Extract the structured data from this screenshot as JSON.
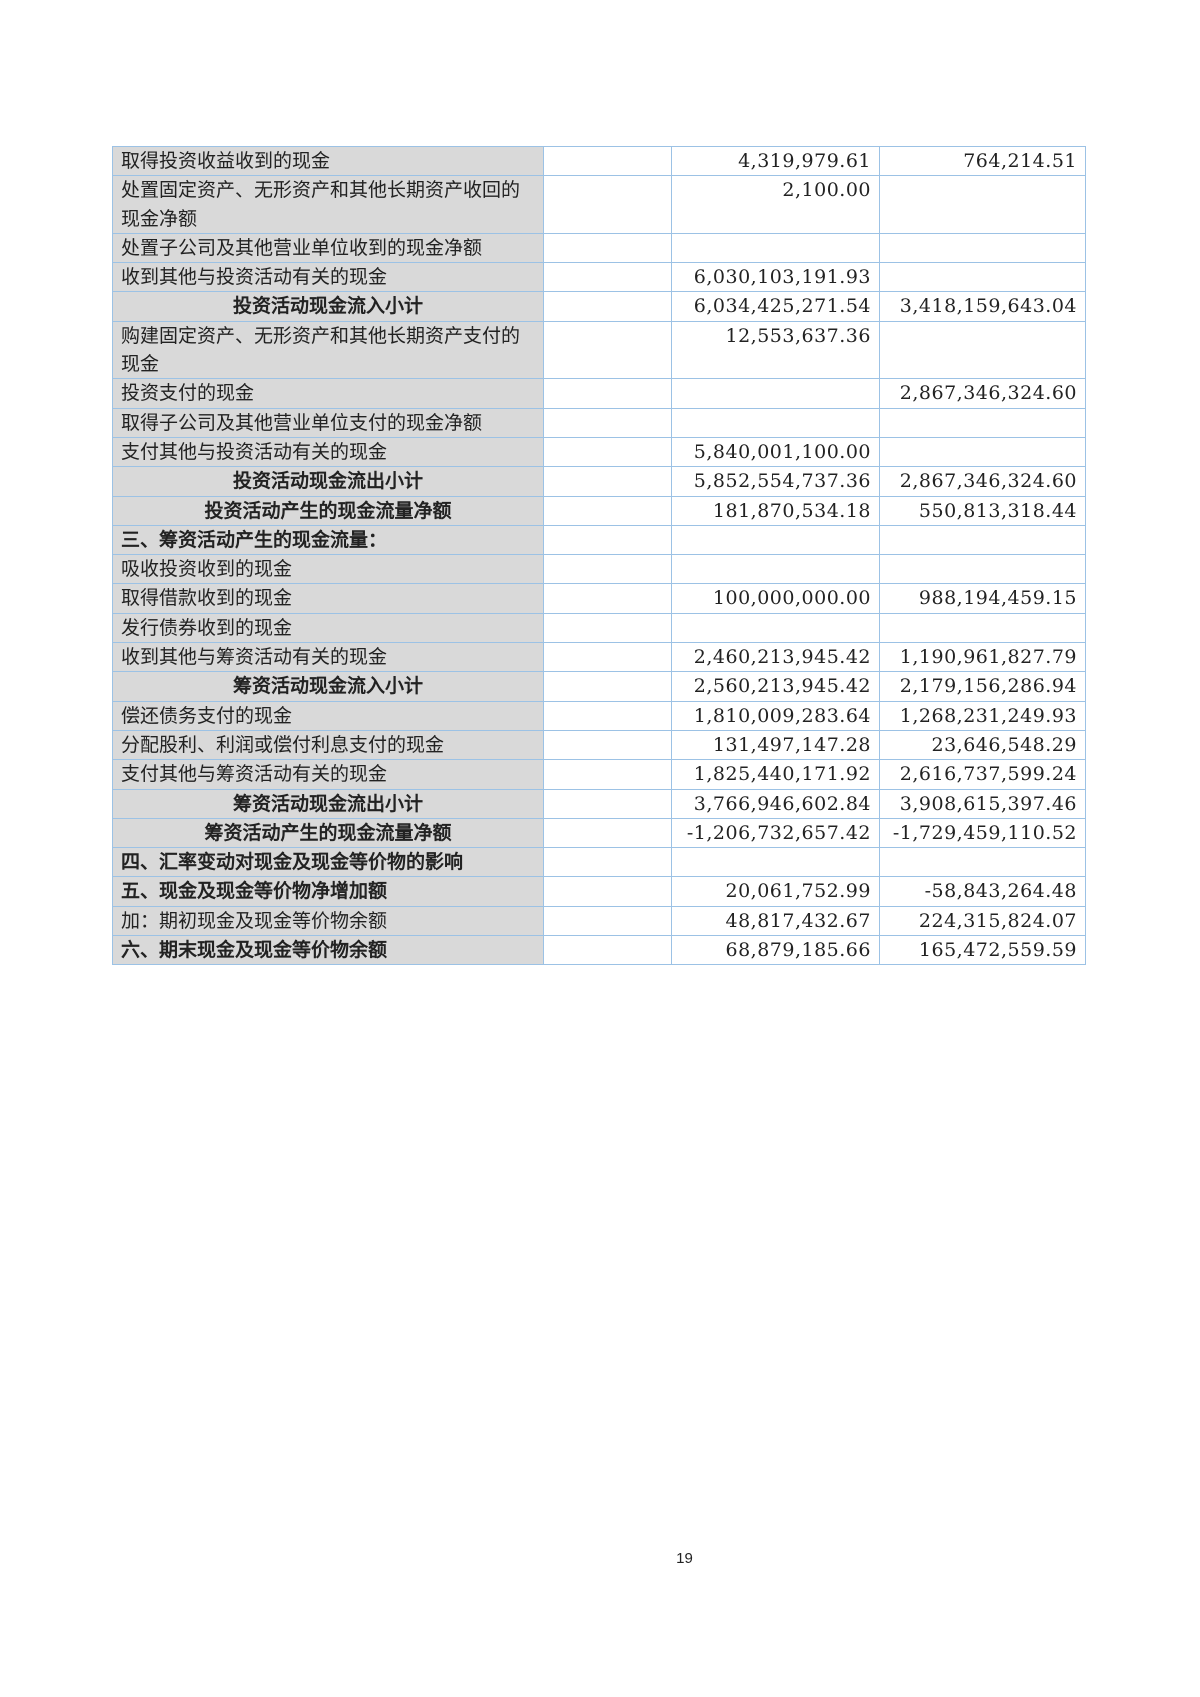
{
  "rows": [
    {
      "label": "取得投资收益收到的现金",
      "note": "",
      "current": "4,319,979.61",
      "previous": "764,214.51",
      "style": ""
    },
    {
      "label": "处置固定资产、无形资产和其他长期资产收回的现金净额",
      "note": "",
      "current": "2,100.00",
      "previous": "",
      "style": ""
    },
    {
      "label": "处置子公司及其他营业单位收到的现金净额",
      "note": "",
      "current": "",
      "previous": "",
      "style": ""
    },
    {
      "label": "收到其他与投资活动有关的现金",
      "note": "",
      "current": "6,030,103,191.93",
      "previous": "",
      "style": ""
    },
    {
      "label": "投资活动现金流入小计",
      "note": "",
      "current": "6,034,425,271.54",
      "previous": "3,418,159,643.04",
      "style": "subtotal"
    },
    {
      "label": "购建固定资产、无形资产和其他长期资产支付的现金",
      "note": "",
      "current": "12,553,637.36",
      "previous": "",
      "style": ""
    },
    {
      "label": "投资支付的现金",
      "note": "",
      "current": "",
      "previous": "2,867,346,324.60",
      "style": ""
    },
    {
      "label": "取得子公司及其他营业单位支付的现金净额",
      "note": "",
      "current": "",
      "previous": "",
      "style": ""
    },
    {
      "label": "支付其他与投资活动有关的现金",
      "note": "",
      "current": "5,840,001,100.00",
      "previous": "",
      "style": ""
    },
    {
      "label": "投资活动现金流出小计",
      "note": "",
      "current": "5,852,554,737.36",
      "previous": "2,867,346,324.60",
      "style": "subtotal"
    },
    {
      "label": "投资活动产生的现金流量净额",
      "note": "",
      "current": "181,870,534.18",
      "previous": "550,813,318.44",
      "style": "subtotal"
    },
    {
      "label": "三、筹资活动产生的现金流量：",
      "note": "",
      "current": "",
      "previous": "",
      "style": "section"
    },
    {
      "label": "吸收投资收到的现金",
      "note": "",
      "current": "",
      "previous": "",
      "style": ""
    },
    {
      "label": "取得借款收到的现金",
      "note": "",
      "current": "100,000,000.00",
      "previous": "988,194,459.15",
      "style": ""
    },
    {
      "label": "发行债券收到的现金",
      "note": "",
      "current": "",
      "previous": "",
      "style": ""
    },
    {
      "label": "收到其他与筹资活动有关的现金",
      "note": "",
      "current": "2,460,213,945.42",
      "previous": "1,190,961,827.79",
      "style": ""
    },
    {
      "label": "筹资活动现金流入小计",
      "note": "",
      "current": "2,560,213,945.42",
      "previous": "2,179,156,286.94",
      "style": "subtotal"
    },
    {
      "label": "偿还债务支付的现金",
      "note": "",
      "current": "1,810,009,283.64",
      "previous": "1,268,231,249.93",
      "style": ""
    },
    {
      "label": "分配股利、利润或偿付利息支付的现金",
      "note": "",
      "current": "131,497,147.28",
      "previous": "23,646,548.29",
      "style": ""
    },
    {
      "label": "支付其他与筹资活动有关的现金",
      "note": "",
      "current": "1,825,440,171.92",
      "previous": "2,616,737,599.24",
      "style": ""
    },
    {
      "label": "筹资活动现金流出小计",
      "note": "",
      "current": "3,766,946,602.84",
      "previous": "3,908,615,397.46",
      "style": "subtotal"
    },
    {
      "label": "筹资活动产生的现金流量净额",
      "note": "",
      "current": "-1,206,732,657.42",
      "previous": "-1,729,459,110.52",
      "style": "subtotal"
    },
    {
      "label": "四、汇率变动对现金及现金等价物的影响",
      "note": "",
      "current": "",
      "previous": "",
      "style": "section"
    },
    {
      "label": "五、现金及现金等价物净增加额",
      "note": "",
      "current": "20,061,752.99",
      "previous": "-58,843,264.48",
      "style": "section"
    },
    {
      "label": "加：期初现金及现金等价物余额",
      "note": "",
      "current": "48,817,432.67",
      "previous": "224,315,824.07",
      "style": ""
    },
    {
      "label": "六、期末现金及现金等价物余额",
      "note": "",
      "current": "68,879,185.66",
      "previous": "165,472,559.59",
      "style": "section"
    }
  ],
  "page_number": "19"
}
